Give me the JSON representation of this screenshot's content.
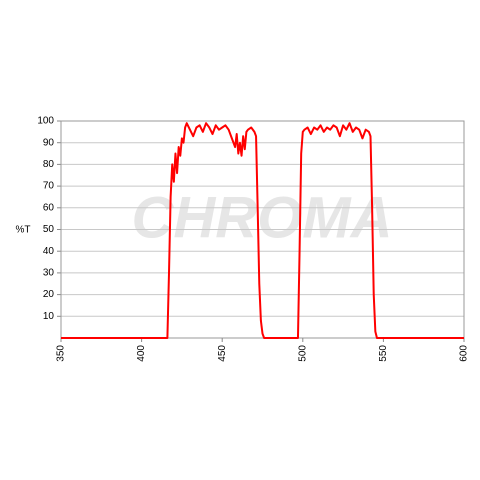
{
  "chart_data": {
    "type": "line",
    "watermark": "CHROMA",
    "y_label": "%T",
    "x": [
      350,
      416,
      417,
      418,
      419,
      420,
      421,
      422,
      423,
      424,
      425,
      426,
      427,
      428,
      430,
      432,
      434,
      436,
      438,
      440,
      442,
      444,
      446,
      448,
      450,
      452,
      454,
      456,
      458,
      459,
      460,
      461,
      462,
      463,
      464,
      465,
      466,
      468,
      470,
      471,
      472,
      473,
      474,
      475,
      476,
      497,
      498,
      499,
      500,
      501,
      503,
      505,
      507,
      509,
      511,
      513,
      515,
      517,
      519,
      521,
      523,
      525,
      527,
      529,
      531,
      533,
      535,
      537,
      539,
      541,
      542,
      543,
      544,
      545,
      546,
      600
    ],
    "series": [
      {
        "color": "#ff0000",
        "values": [
          0,
          0,
          30,
          65,
          80,
          72,
          85,
          76,
          88,
          84,
          92,
          90,
          97,
          99,
          96,
          93,
          97,
          98,
          95,
          99,
          97,
          94,
          98,
          96,
          97,
          98,
          96,
          92,
          88,
          94,
          85,
          90,
          84,
          93,
          87,
          95,
          96,
          97,
          95,
          93,
          60,
          25,
          8,
          2,
          0,
          0,
          40,
          85,
          95,
          96,
          97,
          94,
          97,
          96,
          98,
          95,
          97,
          96,
          98,
          97,
          93,
          98,
          96,
          99,
          95,
          97,
          96,
          92,
          96,
          95,
          93,
          60,
          20,
          3,
          0,
          0
        ]
      }
    ],
    "xlim": [
      350,
      600
    ],
    "xticks": [
      350,
      400,
      450,
      500,
      550,
      600
    ],
    "ylim": [
      0,
      100
    ],
    "yticks": [
      10,
      20,
      30,
      40,
      50,
      60,
      70,
      80,
      90,
      100
    ],
    "grid": true
  }
}
